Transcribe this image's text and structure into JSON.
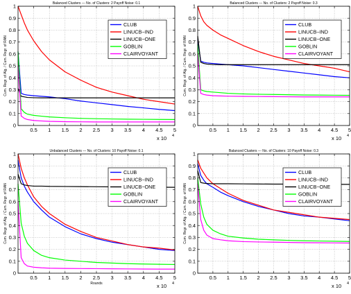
{
  "chart_data": [
    {
      "type": "line",
      "title": "Balanced Clusters --- No. of Clusters: 2 Payoff Noise: 0.1",
      "ylabel": "Cum. Regr. of Alg. / Cum. Regr. of RAN",
      "xlabel": "",
      "xlim": [
        0,
        50000
      ],
      "ylim": [
        0,
        1
      ],
      "x_ticks": [
        5000,
        10000,
        15000,
        20000,
        25000,
        30000,
        35000,
        40000,
        45000,
        50000
      ],
      "x_tick_labels": [
        "0.5",
        "1",
        "1.5",
        "2",
        "2.5",
        "3",
        "3.5",
        "4",
        "4.5",
        "5"
      ],
      "x_multiplier": "x 10",
      "x_multiplier_exp": "4",
      "y_ticks": [
        0,
        0.1,
        0.2,
        0.3,
        0.4,
        0.5,
        0.6,
        0.7,
        0.8,
        0.9,
        1
      ],
      "y_tick_labels": [
        "0",
        "0.1",
        "0.2",
        "0.3",
        "0.4",
        "0.5",
        "0.6",
        "0.7",
        "0.8",
        "0.9",
        "1"
      ],
      "grid": true,
      "legend_position": "top-right",
      "x": [
        0,
        1000,
        2000,
        3000,
        5000,
        7500,
        10000,
        15000,
        20000,
        25000,
        30000,
        35000,
        40000,
        45000,
        50000
      ],
      "series": [
        {
          "name": "CLUB",
          "color": "#0000ff",
          "values": [
            0.62,
            0.27,
            0.26,
            0.255,
            0.25,
            0.245,
            0.24,
            0.225,
            0.205,
            0.19,
            0.175,
            0.16,
            0.148,
            0.135,
            0.125
          ]
        },
        {
          "name": "LINUCB−IND",
          "color": "#ff0000",
          "values": [
            1.0,
            0.93,
            0.86,
            0.8,
            0.71,
            0.62,
            0.55,
            0.45,
            0.38,
            0.32,
            0.28,
            0.25,
            0.22,
            0.2,
            0.18
          ]
        },
        {
          "name": "LINUCB−ONE",
          "color": "#000000",
          "values": [
            0.31,
            0.245,
            0.24,
            0.235,
            0.233,
            0.232,
            0.232,
            0.232,
            0.232,
            0.232,
            0.232,
            0.232,
            0.232,
            0.232,
            0.232
          ]
        },
        {
          "name": "GOBLIN",
          "color": "#00ff00",
          "values": [
            0.62,
            0.14,
            0.11,
            0.095,
            0.085,
            0.078,
            0.072,
            0.065,
            0.06,
            0.057,
            0.055,
            0.053,
            0.052,
            0.051,
            0.05
          ]
        },
        {
          "name": "CLAIRVOYANT",
          "color": "#ff00ff",
          "values": [
            0.5,
            0.08,
            0.06,
            0.05,
            0.042,
            0.038,
            0.035,
            0.032,
            0.031,
            0.03,
            0.03,
            0.03,
            0.03,
            0.03,
            0.03
          ]
        }
      ]
    },
    {
      "type": "line",
      "title": "Balanced Clusters --- No. of Clusters: 2 Payoff Noise: 0.3",
      "ylabel": "Cum. Regr. of Alg. / Cum. Regr. of RAN",
      "xlabel": "",
      "xlim": [
        0,
        50000
      ],
      "ylim": [
        0,
        1
      ],
      "x_ticks": [
        5000,
        10000,
        15000,
        20000,
        25000,
        30000,
        35000,
        40000,
        45000,
        50000
      ],
      "x_tick_labels": [
        "0.5",
        "1",
        "1.5",
        "2",
        "2.5",
        "3",
        "3.5",
        "4",
        "4.5",
        "5"
      ],
      "x_multiplier": "x 10",
      "x_multiplier_exp": "4",
      "y_ticks": [
        0,
        0.1,
        0.2,
        0.3,
        0.4,
        0.5,
        0.6,
        0.7,
        0.8,
        0.9,
        1
      ],
      "y_tick_labels": [
        "0",
        "0.1",
        "0.2",
        "0.3",
        "0.4",
        "0.5",
        "0.6",
        "0.7",
        "0.8",
        "0.9",
        "1"
      ],
      "grid": true,
      "legend_position": "top-right",
      "x": [
        0,
        1000,
        2000,
        3000,
        5000,
        7500,
        10000,
        15000,
        20000,
        25000,
        30000,
        35000,
        40000,
        45000,
        50000
      ],
      "series": [
        {
          "name": "CLUB",
          "color": "#0000ff",
          "values": [
            0.72,
            0.54,
            0.53,
            0.525,
            0.52,
            0.515,
            0.51,
            0.5,
            0.485,
            0.47,
            0.455,
            0.44,
            0.425,
            0.41,
            0.4
          ]
        },
        {
          "name": "LINUCB−IND",
          "color": "#ff0000",
          "values": [
            1.0,
            0.92,
            0.87,
            0.84,
            0.8,
            0.76,
            0.73,
            0.67,
            0.62,
            0.58,
            0.55,
            0.52,
            0.5,
            0.48,
            0.45
          ]
        },
        {
          "name": "LINUCB−ONE",
          "color": "#000000",
          "values": [
            0.75,
            0.53,
            0.52,
            0.515,
            0.512,
            0.51,
            0.51,
            0.51,
            0.51,
            0.51,
            0.51,
            0.51,
            0.51,
            0.51,
            0.51
          ]
        },
        {
          "name": "GOBLIN",
          "color": "#00ff00",
          "values": [
            0.68,
            0.3,
            0.29,
            0.285,
            0.28,
            0.275,
            0.27,
            0.265,
            0.262,
            0.26,
            0.258,
            0.256,
            0.255,
            0.254,
            0.253
          ]
        },
        {
          "name": "CLAIRVOYANT",
          "color": "#ff00ff",
          "values": [
            0.6,
            0.27,
            0.26,
            0.255,
            0.25,
            0.248,
            0.246,
            0.244,
            0.243,
            0.242,
            0.241,
            0.24,
            0.24,
            0.24,
            0.24
          ]
        }
      ]
    },
    {
      "type": "line",
      "title": "Unbalanced Clusters --- No. of Clusters: 10 Payoff Noise: 0.1",
      "ylabel": "Cum. Regr. of Alg. / Cum. Regr. of RAN",
      "xlabel": "Rounds",
      "xlim": [
        0,
        50000
      ],
      "ylim": [
        0,
        1
      ],
      "x_ticks": [
        5000,
        10000,
        15000,
        20000,
        25000,
        30000,
        35000,
        40000,
        45000,
        50000
      ],
      "x_tick_labels": [
        "0.5",
        "1",
        "1.5",
        "2",
        "2.5",
        "3",
        "3.5",
        "4",
        "4.5",
        "5"
      ],
      "x_multiplier": "x 10",
      "x_multiplier_exp": "4",
      "y_ticks": [
        0,
        0.1,
        0.2,
        0.3,
        0.4,
        0.5,
        0.6,
        0.7,
        0.8,
        0.9,
        1
      ],
      "y_tick_labels": [
        "0",
        "0.1",
        "0.2",
        "0.3",
        "0.4",
        "0.5",
        "0.6",
        "0.7",
        "0.8",
        "0.9",
        "1"
      ],
      "grid": true,
      "legend_position": "top-right",
      "x": [
        0,
        1000,
        2000,
        3000,
        5000,
        7500,
        10000,
        15000,
        20000,
        25000,
        30000,
        35000,
        40000,
        45000,
        50000
      ],
      "series": [
        {
          "name": "CLUB",
          "color": "#0000ff",
          "values": [
            0.95,
            0.8,
            0.73,
            0.68,
            0.6,
            0.53,
            0.47,
            0.39,
            0.33,
            0.29,
            0.26,
            0.24,
            0.22,
            0.2,
            0.19
          ]
        },
        {
          "name": "LINUCB−IND",
          "color": "#ff0000",
          "values": [
            1.0,
            0.88,
            0.8,
            0.74,
            0.64,
            0.56,
            0.5,
            0.41,
            0.35,
            0.3,
            0.27,
            0.24,
            0.22,
            0.21,
            0.195
          ]
        },
        {
          "name": "LINUCB−ONE",
          "color": "#000000",
          "values": [
            0.83,
            0.75,
            0.74,
            0.735,
            0.73,
            0.73,
            0.728,
            0.727,
            0.726,
            0.725,
            0.724,
            0.723,
            0.722,
            0.721,
            0.72
          ]
        },
        {
          "name": "GOBLIN",
          "color": "#00ff00",
          "values": [
            0.75,
            0.42,
            0.31,
            0.25,
            0.19,
            0.15,
            0.13,
            0.11,
            0.1,
            0.09,
            0.085,
            0.08,
            0.077,
            0.075,
            0.073
          ]
        },
        {
          "name": "CLAIRVOYANT",
          "color": "#ff00ff",
          "values": [
            0.6,
            0.13,
            0.08,
            0.06,
            0.05,
            0.045,
            0.042,
            0.04,
            0.039,
            0.038,
            0.037,
            0.036,
            0.035,
            0.034,
            0.034
          ]
        }
      ]
    },
    {
      "type": "line",
      "title": "Balanced Clusters --- No. of Clusters: 10 Payoff Noise: 0.3",
      "ylabel": "Cum. Regr. of Alg. / Cum. Regr. of RAN",
      "xlabel": "",
      "xlim": [
        0,
        50000
      ],
      "ylim": [
        0,
        1
      ],
      "x_ticks": [
        5000,
        10000,
        15000,
        20000,
        25000,
        30000,
        35000,
        40000,
        45000,
        50000
      ],
      "x_tick_labels": [
        "0.5",
        "1",
        "1.5",
        "2",
        "2.5",
        "3",
        "3.5",
        "4",
        "4.5",
        "5"
      ],
      "x_multiplier": "x 10",
      "x_multiplier_exp": "4",
      "y_ticks": [
        0,
        0.1,
        0.2,
        0.3,
        0.4,
        0.5,
        0.6,
        0.7,
        0.8,
        0.9,
        1
      ],
      "y_tick_labels": [
        "0",
        "0.1",
        "0.2",
        "0.3",
        "0.4",
        "0.5",
        "0.6",
        "0.7",
        "0.8",
        "0.9",
        "1"
      ],
      "grid": true,
      "legend_position": "top-right",
      "x": [
        0,
        1000,
        2000,
        3000,
        5000,
        7500,
        10000,
        15000,
        20000,
        25000,
        30000,
        35000,
        40000,
        45000,
        50000
      ],
      "series": [
        {
          "name": "CLUB",
          "color": "#0000ff",
          "values": [
            0.92,
            0.82,
            0.78,
            0.75,
            0.72,
            0.68,
            0.65,
            0.6,
            0.56,
            0.53,
            0.5,
            0.48,
            0.47,
            0.455,
            0.44
          ]
        },
        {
          "name": "LINUCB−IND",
          "color": "#ff0000",
          "values": [
            0.95,
            0.88,
            0.84,
            0.8,
            0.75,
            0.71,
            0.67,
            0.61,
            0.57,
            0.53,
            0.51,
            0.49,
            0.47,
            0.46,
            0.45
          ]
        },
        {
          "name": "LINUCB−ONE",
          "color": "#000000",
          "values": [
            0.86,
            0.76,
            0.755,
            0.752,
            0.75,
            0.75,
            0.75,
            0.749,
            0.748,
            0.747,
            0.747,
            0.746,
            0.746,
            0.745,
            0.745
          ]
        },
        {
          "name": "GOBLIN",
          "color": "#00ff00",
          "values": [
            0.8,
            0.58,
            0.47,
            0.41,
            0.36,
            0.33,
            0.31,
            0.295,
            0.285,
            0.28,
            0.275,
            0.272,
            0.27,
            0.268,
            0.266
          ]
        },
        {
          "name": "CLAIRVOYANT",
          "color": "#ff00ff",
          "values": [
            0.75,
            0.45,
            0.36,
            0.32,
            0.29,
            0.28,
            0.272,
            0.265,
            0.262,
            0.26,
            0.258,
            0.256,
            0.255,
            0.254,
            0.253
          ]
        }
      ]
    }
  ]
}
